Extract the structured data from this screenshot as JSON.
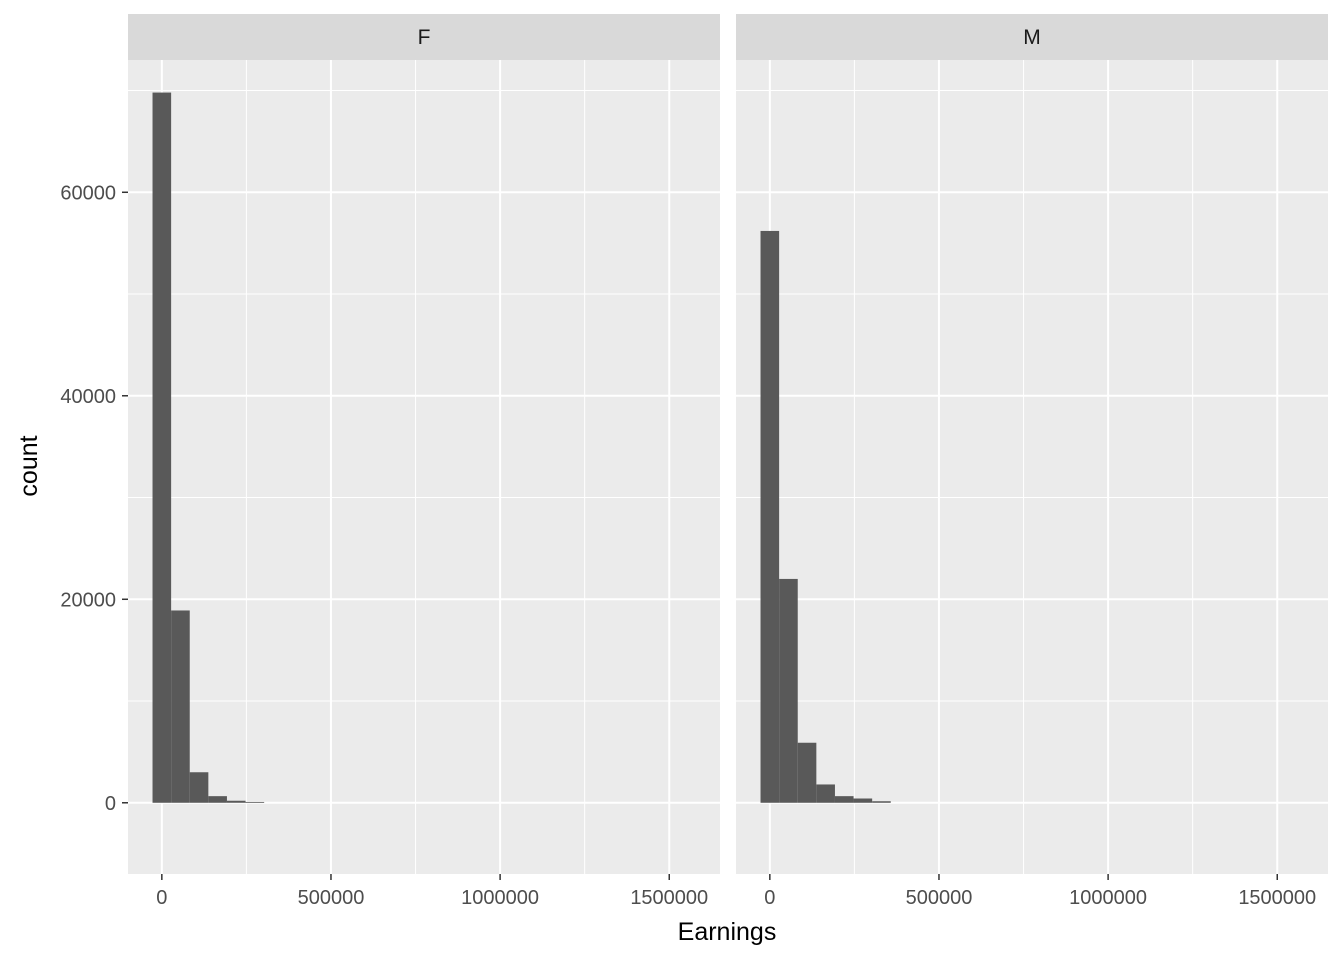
{
  "chart_data": {
    "type": "bar",
    "subtype": "faceted-histogram",
    "xlabel": "Earnings",
    "ylabel": "count",
    "xlim": [
      -100000,
      1650000
    ],
    "ylim": [
      -7000,
      73000
    ],
    "x_ticks": [
      0,
      500000,
      1000000,
      1500000
    ],
    "x_tick_labels": [
      "0",
      "500000",
      "1000000",
      "1500000"
    ],
    "x_minor_ticks": [
      250000,
      750000,
      1250000
    ],
    "y_ticks": [
      0,
      20000,
      40000,
      60000
    ],
    "y_tick_labels": [
      "0",
      "20000",
      "40000",
      "60000"
    ],
    "y_minor_ticks": [
      10000,
      30000,
      50000,
      70000
    ],
    "bin_width": 55000,
    "grid": true,
    "legend": "none",
    "colors": {
      "bar": "#595959",
      "panel_bg": "#ebebeb",
      "grid": "#ffffff",
      "strip_bg": "#d9d9d9"
    },
    "facets": [
      {
        "label": "F",
        "bin_centers": [
          0,
          55000,
          110000,
          165000,
          220000,
          275000
        ],
        "counts": [
          69800,
          18900,
          3000,
          650,
          200,
          80
        ]
      },
      {
        "label": "M",
        "bin_centers": [
          0,
          55000,
          110000,
          165000,
          220000,
          275000,
          330000
        ],
        "counts": [
          56200,
          22000,
          5900,
          1800,
          650,
          420,
          150
        ]
      }
    ]
  }
}
